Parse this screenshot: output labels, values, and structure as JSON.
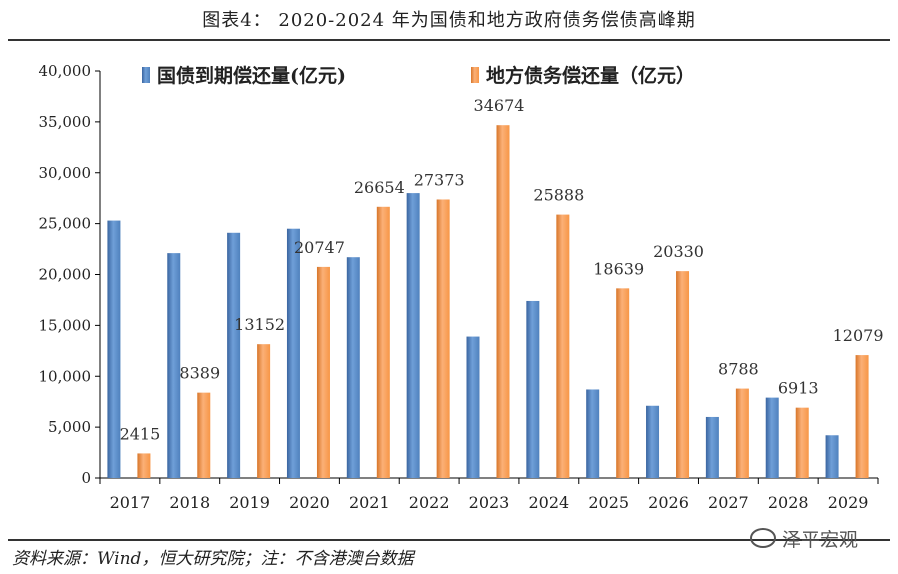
{
  "title": "图表4： 2020-2024 年为国债和地方政府债务偿债高峰期",
  "source_note": "资料来源：Wind，恒大研究院；注：不含港澳台数据",
  "watermark": "泽平宏观",
  "chart_data": {
    "type": "bar",
    "categories": [
      "2017",
      "2018",
      "2019",
      "2020",
      "2021",
      "2022",
      "2023",
      "2024",
      "2025",
      "2026",
      "2027",
      "2028",
      "2029"
    ],
    "series": [
      {
        "name": "国债到期偿还量(亿元)",
        "color": "#4F81BD",
        "values": [
          25300,
          22100,
          24100,
          24500,
          21700,
          28000,
          13900,
          17400,
          8700,
          7100,
          6000,
          7900,
          4200
        ]
      },
      {
        "name": "地方债务偿还量（亿元）",
        "color": "#F79646",
        "values": [
          2415,
          8389,
          13152,
          20747,
          26654,
          27373,
          34674,
          25888,
          18639,
          20330,
          8788,
          6913,
          12079
        ]
      }
    ],
    "data_labels": [
      "2415",
      "8389",
      "13152",
      "20747",
      "26654",
      "27373",
      "34674",
      "25888",
      "18639",
      "20330",
      "8788",
      "6913",
      "12079"
    ],
    "y_ticks": [
      0,
      5000,
      10000,
      15000,
      20000,
      25000,
      30000,
      35000,
      40000
    ],
    "y_tick_labels": [
      "0",
      "5,000",
      "10,000",
      "15,000",
      "20,000",
      "25,000",
      "30,000",
      "35,000",
      "40,000"
    ],
    "ylim": [
      0,
      40000
    ],
    "legend_position": "top",
    "grid": false
  }
}
